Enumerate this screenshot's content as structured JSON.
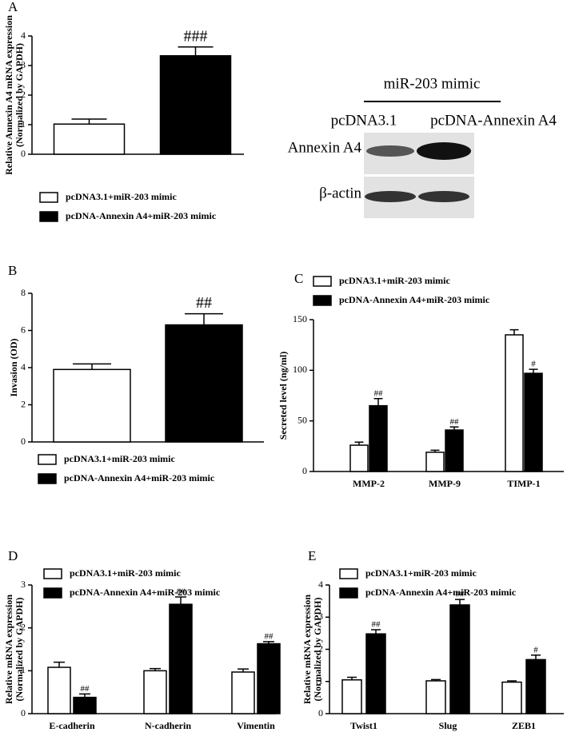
{
  "chart_data": [
    {
      "type": "bar",
      "label": "A",
      "ylabel": [
        "Relative Annexin A4 mRNA expression",
        "(Normalized by GAPDH)"
      ],
      "categories": [
        null
      ],
      "ylim": [
        0,
        4
      ],
      "yticks": [
        0,
        1,
        2,
        3,
        4
      ],
      "legend": "bottom",
      "series": [
        {
          "name": "pcDNA3.1+miR-203 mimic",
          "color": "#ffffff",
          "values": [
            1.02
          ],
          "errors": [
            0.17
          ],
          "annotations": [
            null
          ]
        },
        {
          "name": "pcDNA-Annexin A4+miR-203 mimic",
          "color": "#000000",
          "values": [
            3.33
          ],
          "errors": [
            0.3
          ],
          "annotations": [
            "###"
          ]
        }
      ]
    },
    {
      "type": "bar",
      "label": "B",
      "ylabel": [
        "Invasion (OD)"
      ],
      "categories": [
        null
      ],
      "ylim": [
        0,
        8
      ],
      "yticks": [
        0,
        2,
        4,
        6,
        8
      ],
      "legend": "bottom",
      "series": [
        {
          "name": "pcDNA3.1+miR-203 mimic",
          "color": "#ffffff",
          "values": [
            3.9
          ],
          "errors": [
            0.3
          ],
          "annotations": [
            null
          ]
        },
        {
          "name": "pcDNA-Annexin A4+miR-203 mimic",
          "color": "#000000",
          "values": [
            6.3
          ],
          "errors": [
            0.6
          ],
          "annotations": [
            "##"
          ]
        }
      ]
    },
    {
      "type": "bar",
      "label": "C",
      "ylabel": [
        "Secreted level (ng/ml)"
      ],
      "categories": [
        "MMP-2",
        "MMP-9",
        "TIMP-1"
      ],
      "ylim": [
        0,
        150
      ],
      "yticks": [
        0,
        50,
        100,
        150
      ],
      "legend": "top",
      "series": [
        {
          "name": "pcDNA3.1+miR-203 mimic",
          "color": "#ffffff",
          "values": [
            26,
            19,
            135
          ],
          "errors": [
            3,
            2,
            5
          ],
          "annotations": [
            null,
            null,
            null
          ]
        },
        {
          "name": "pcDNA-Annexin A4+miR-203 mimic",
          "color": "#000000",
          "values": [
            65,
            41,
            97
          ],
          "errors": [
            7,
            3,
            4
          ],
          "annotations": [
            "##",
            "##",
            "#"
          ]
        }
      ]
    },
    {
      "type": "bar",
      "label": "D",
      "ylabel": [
        "Relative mRNA expression",
        "(Normalized by GAPDH)"
      ],
      "categories": [
        "E-cadherin",
        "N-cadherin",
        "Vimentin"
      ],
      "ylim": [
        0,
        3
      ],
      "yticks": [
        0,
        1,
        2,
        3
      ],
      "legend": "top",
      "series": [
        {
          "name": "pcDNA3.1+miR-203 mimic",
          "color": "#ffffff",
          "values": [
            1.08,
            1.0,
            0.97
          ],
          "errors": [
            0.12,
            0.05,
            0.07
          ],
          "annotations": [
            null,
            null,
            null
          ]
        },
        {
          "name": "pcDNA-Annexin A4+miR-203 mimic",
          "color": "#000000",
          "values": [
            0.38,
            2.55,
            1.63
          ],
          "errors": [
            0.08,
            0.17,
            0.05
          ],
          "annotations": [
            "##",
            "##",
            "##"
          ]
        }
      ]
    },
    {
      "type": "bar",
      "label": "E",
      "ylabel": [
        "Relative mRNA expression",
        "(Normalized by GAPDH)"
      ],
      "categories": [
        "Twist1",
        "Slug",
        "ZEB1"
      ],
      "ylim": [
        0,
        4
      ],
      "yticks": [
        0,
        1,
        2,
        3,
        4
      ],
      "legend": "top",
      "series": [
        {
          "name": "pcDNA3.1+miR-203 mimic",
          "color": "#ffffff",
          "values": [
            1.05,
            1.02,
            0.98
          ],
          "errors": [
            0.08,
            0.04,
            0.04
          ],
          "annotations": [
            null,
            null,
            null
          ]
        },
        {
          "name": "pcDNA-Annexin A4+miR-203 mimic",
          "color": "#000000",
          "values": [
            2.48,
            3.38,
            1.68
          ],
          "errors": [
            0.13,
            0.17,
            0.14
          ],
          "annotations": [
            "##",
            "##",
            "#"
          ]
        }
      ]
    }
  ],
  "blot": {
    "treatment": "miR-203 mimic",
    "lanes": [
      "pcDNA3.1",
      "pcDNA-Annexin A4"
    ],
    "rows": [
      "Annexin A4",
      "β-actin"
    ]
  }
}
